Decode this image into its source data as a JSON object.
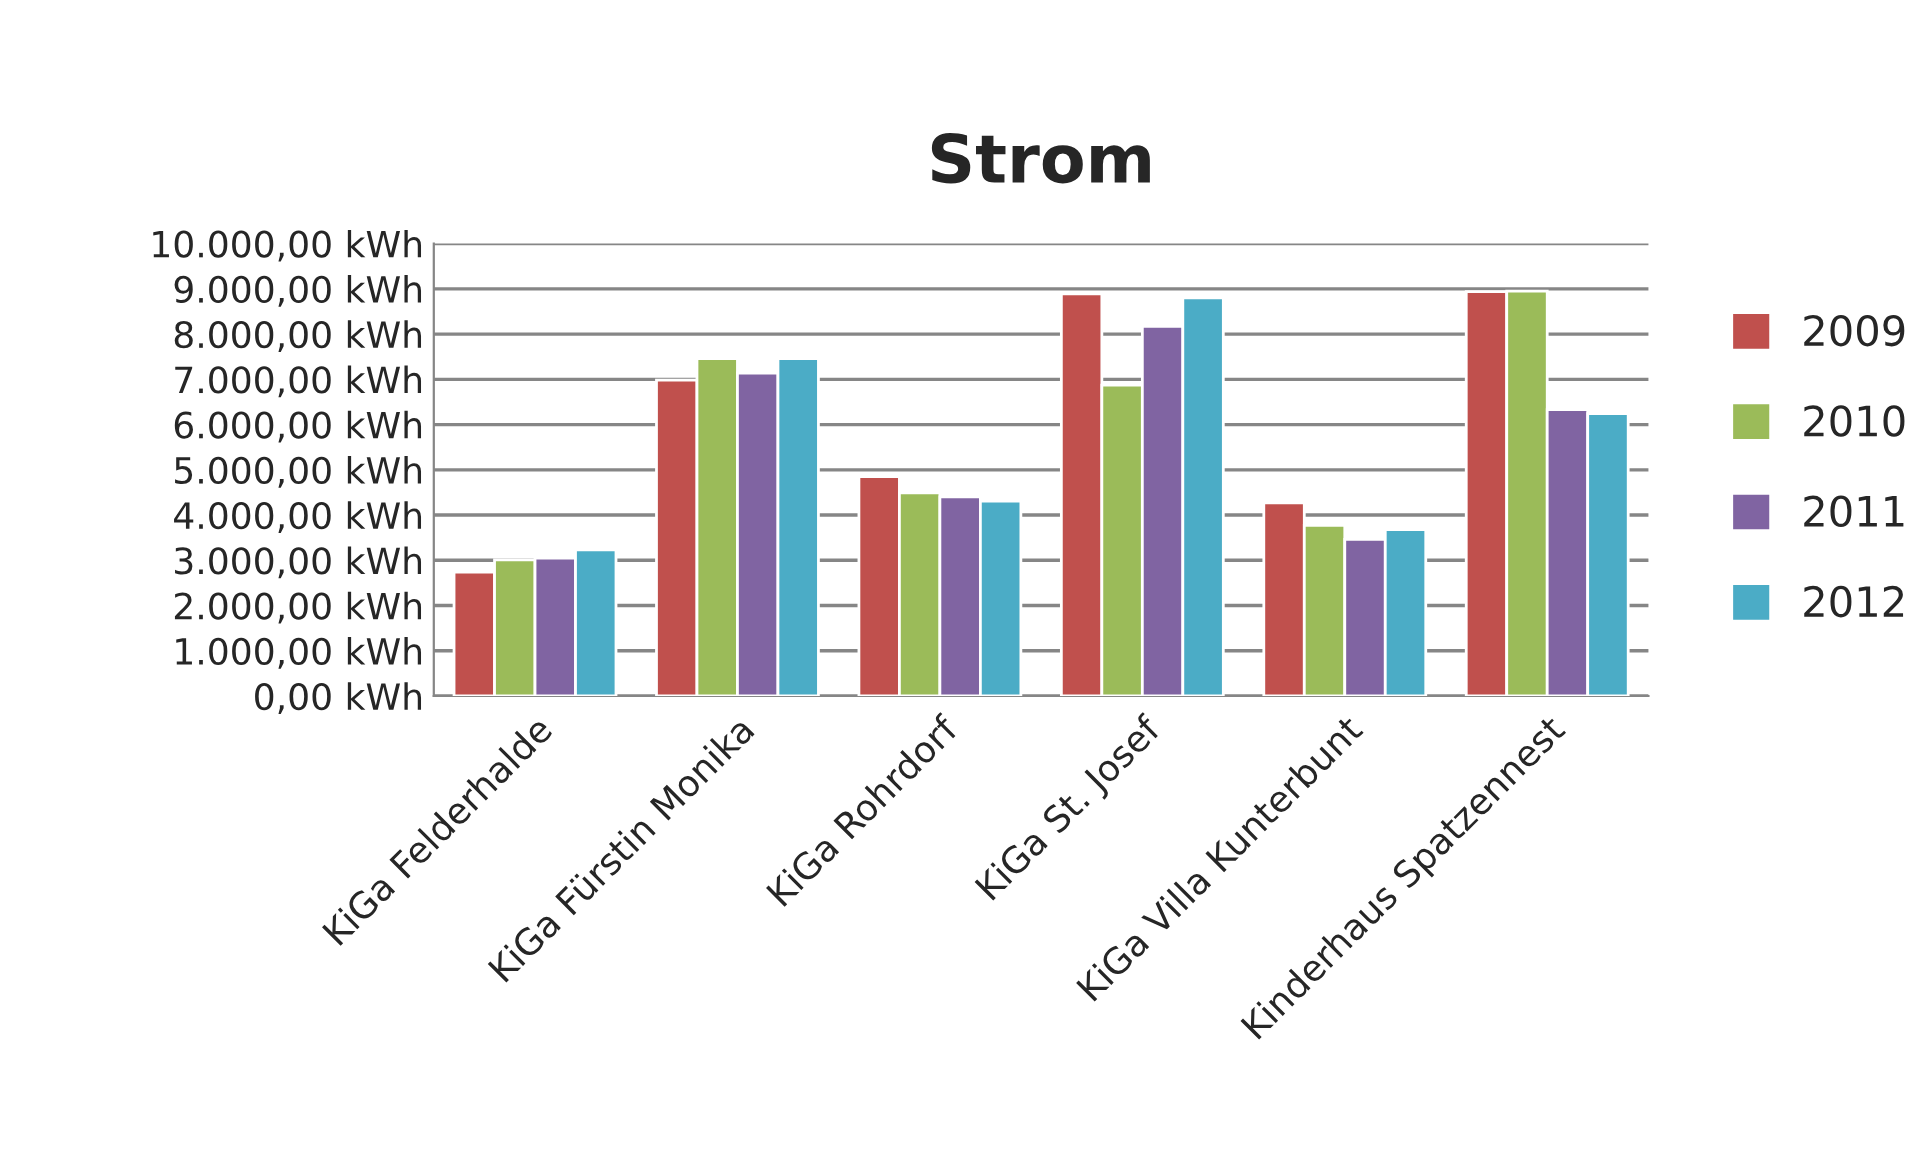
{
  "chart_data": {
    "type": "bar",
    "title": "Strom",
    "categories": [
      "KiGa Felderhalde",
      "KiGa Fürstin Monika",
      "KiGa Rohrdorf",
      "KiGa St. Josef",
      "KiGa Villa Kunterbunt",
      "Kinderhaus Spatzennest"
    ],
    "series": [
      {
        "name": "2009",
        "color": "#c0504d",
        "values": [
          2740,
          6980,
          4850,
          8890,
          4270,
          8940
        ]
      },
      {
        "name": "2010",
        "color": "#9bbb59",
        "values": [
          3010,
          7460,
          4490,
          6870,
          3770,
          8950
        ]
      },
      {
        "name": "2011",
        "color": "#8064a2",
        "values": [
          3050,
          7140,
          4400,
          8170,
          3460,
          6330
        ]
      },
      {
        "name": "2012",
        "color": "#4bacc6",
        "values": [
          3230,
          7460,
          4310,
          8800,
          3680,
          6240
        ]
      }
    ],
    "ylim": [
      0,
      10000
    ],
    "yticks": [
      {
        "value": 0,
        "label": "0,00 kWh"
      },
      {
        "value": 1000,
        "label": "1.000,00 kWh"
      },
      {
        "value": 2000,
        "label": "2.000,00 kWh"
      },
      {
        "value": 3000,
        "label": "3.000,00 kWh"
      },
      {
        "value": 4000,
        "label": "4.000,00 kWh"
      },
      {
        "value": 5000,
        "label": "5.000,00 kWh"
      },
      {
        "value": 6000,
        "label": "6.000,00 kWh"
      },
      {
        "value": 7000,
        "label": "7.000,00 kWh"
      },
      {
        "value": 8000,
        "label": "8.000,00 kWh"
      },
      {
        "value": 9000,
        "label": "9.000,00 kWh"
      },
      {
        "value": 10000,
        "label": "10.000,00 kWh"
      }
    ],
    "grid": "y",
    "legend": "right"
  }
}
